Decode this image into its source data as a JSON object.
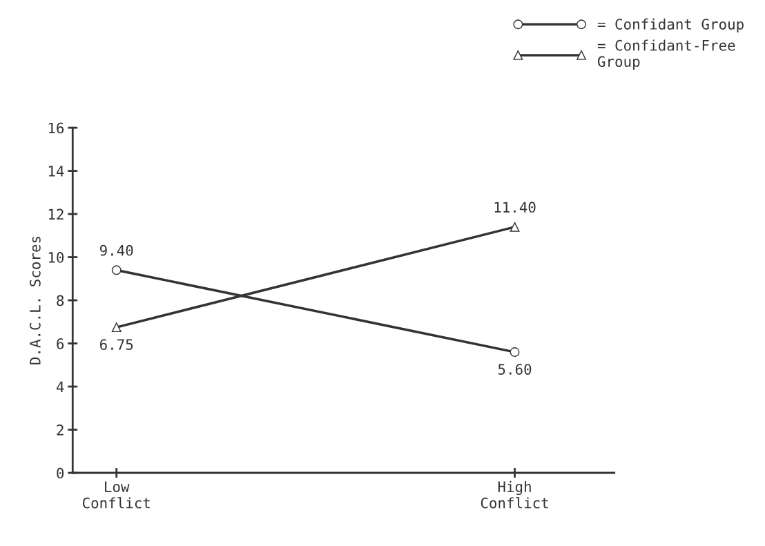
{
  "chart_data": {
    "type": "line",
    "categories": [
      "Low\nConflict",
      "High\nConflict"
    ],
    "ylabel": "D.A.C.L. Scores",
    "series": [
      {
        "name": "= Confidant Group",
        "color": "#333333",
        "marker": "circle",
        "values": [
          9.4,
          5.6
        ],
        "value_labels": [
          "9.40",
          "5.60"
        ]
      },
      {
        "name": "= Confidant-Free\nGroup",
        "color": "#333333",
        "marker": "triangle",
        "values": [
          6.75,
          11.4
        ],
        "value_labels": [
          "6.75",
          "11.40"
        ]
      }
    ],
    "ylim": [
      0,
      16
    ],
    "yticks": [
      0,
      2,
      4,
      6,
      8,
      10,
      12,
      14,
      16
    ],
    "legend": "top right",
    "grid": false,
    "line_style": "solid"
  }
}
